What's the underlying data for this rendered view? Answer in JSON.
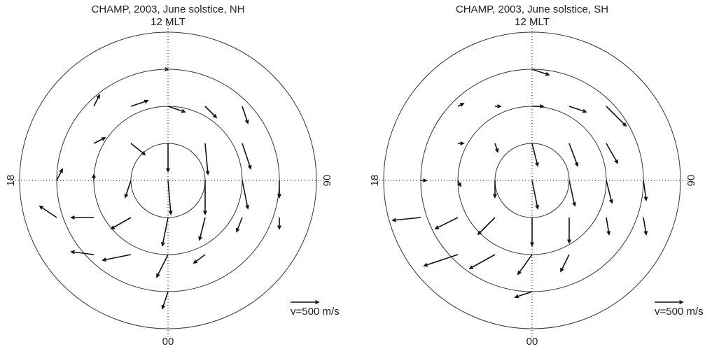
{
  "chart_data": [
    {
      "type": "quiver",
      "title": "CHAMP, 2003, June solstice,  NH",
      "top_label": "12 MLT",
      "left_label": "18",
      "right_label": "06",
      "bottom_label": "00",
      "rlim": [
        0,
        40
      ],
      "rticks": [
        10,
        20,
        30
      ],
      "reference": {
        "value": 500,
        "label": "v=500 m/s"
      },
      "x": [
        0,
        10,
        20,
        30,
        -10,
        -20,
        -30,
        0,
        10,
        20,
        -10,
        -20,
        0,
        10,
        20,
        -10,
        -20,
        0,
        0,
        10,
        20,
        -10,
        -20,
        0,
        10,
        -10,
        -20,
        0,
        -30,
        30
      ],
      "y": [
        0,
        0,
        0,
        0,
        0,
        0,
        0,
        10,
        10,
        10,
        10,
        10,
        20,
        20,
        20,
        20,
        20,
        30,
        -10,
        -10,
        -10,
        -10,
        -10,
        -20,
        -20,
        -20,
        -20,
        -30,
        -10,
        -10
      ],
      "u": [
        50,
        0,
        100,
        0,
        -100,
        0,
        100,
        0,
        50,
        150,
        250,
        200,
        300,
        200,
        100,
        300,
        100,
        0,
        -100,
        -100,
        -100,
        -350,
        -400,
        -200,
        -200,
        -500,
        -400,
        -100,
        -300,
        0
      ],
      "v": [
        -600,
        -600,
        -500,
        -300,
        -300,
        100,
        200,
        -500,
        -550,
        -450,
        -200,
        100,
        -100,
        -200,
        -300,
        100,
        200,
        0,
        -500,
        -400,
        -250,
        -200,
        0,
        -400,
        -150,
        -100,
        50,
        -300,
        200,
        -200
      ]
    },
    {
      "type": "quiver",
      "title": "CHAMP, 2003, June solstice,  SH",
      "top_label": "12 MLT",
      "left_label": "18",
      "right_label": "06",
      "bottom_label": "00",
      "rlim": [
        0,
        40
      ],
      "rticks": [
        10,
        20,
        30
      ],
      "reference": {
        "value": 500,
        "label": "v=500 m/s"
      },
      "x": [
        0,
        10,
        20,
        30,
        -10,
        -20,
        -30,
        0,
        10,
        20,
        -10,
        -20,
        0,
        10,
        20,
        -10,
        -20,
        0,
        0,
        10,
        20,
        -10,
        -20,
        0,
        10,
        -10,
        -20,
        0,
        -30,
        30
      ],
      "y": [
        0,
        0,
        0,
        0,
        0,
        0,
        0,
        10,
        10,
        10,
        10,
        10,
        20,
        20,
        20,
        20,
        20,
        30,
        -10,
        -10,
        -10,
        -10,
        -10,
        -20,
        -20,
        -20,
        -20,
        -30,
        -10,
        -10
      ],
      "u": [
        100,
        100,
        100,
        50,
        0,
        50,
        100,
        100,
        150,
        200,
        50,
        100,
        200,
        300,
        350,
        100,
        100,
        300,
        0,
        0,
        50,
        -300,
        -400,
        -250,
        -150,
        -450,
        -600,
        -300,
        -500,
        50
      ],
      "v": [
        -500,
        -450,
        -400,
        -350,
        -300,
        -100,
        0,
        -400,
        -400,
        -350,
        -150,
        0,
        0,
        -100,
        -350,
        0,
        50,
        -100,
        -500,
        -450,
        -300,
        -300,
        -200,
        -350,
        -300,
        -250,
        -200,
        -100,
        -50,
        -300
      ]
    }
  ]
}
